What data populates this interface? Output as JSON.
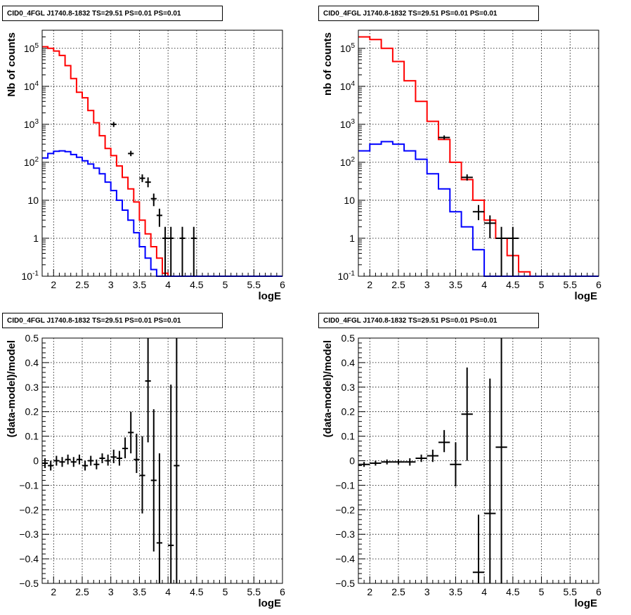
{
  "chart_data": [
    {
      "type": "histogram",
      "title": "CID0_4FGL J1740.8-1832 TS=29.51 PS=0.01 PS=0.01",
      "xlabel": "logE",
      "ylabel": "Nb of counts",
      "xlim": [
        1.8,
        6.0
      ],
      "ylim": [
        0.1,
        300000
      ],
      "yscale": "log",
      "grid": true,
      "xticks": [
        "2",
        "2.5",
        "3",
        "3.5",
        "4",
        "4.5",
        "5",
        "5.5",
        "6"
      ],
      "yticks": [
        "10^-1",
        "1",
        "10",
        "10^2",
        "10^3",
        "10^4",
        "10^5"
      ],
      "bin_edges": [
        1.8,
        1.9,
        2.0,
        2.1,
        2.2,
        2.3,
        2.4,
        2.5,
        2.6,
        2.7,
        2.8,
        2.9,
        3.0,
        3.1,
        3.2,
        3.3,
        3.4,
        3.5,
        3.6,
        3.7,
        3.8,
        3.9,
        4.0,
        4.1,
        4.2,
        4.3,
        4.4,
        4.5,
        4.6,
        4.7,
        4.8,
        4.9,
        5.0,
        5.1,
        5.2,
        5.3,
        5.4,
        5.5,
        5.6,
        5.7,
        5.8,
        5.9,
        6.0
      ],
      "series": [
        {
          "color": "#ff0000",
          "style": "step",
          "values": [
            110000,
            100000,
            85000,
            65000,
            35000,
            16000,
            7000,
            5000,
            2300,
            1100,
            500,
            230,
            150,
            80,
            40,
            20,
            9,
            3,
            1.3,
            0.6,
            0.3,
            0.12,
            0.1,
            0.1,
            0.1,
            0.1,
            0.1,
            0.1,
            0.1,
            0.1,
            0.1,
            0.1,
            0.1,
            0.1,
            0.1,
            0.1,
            0.1,
            0.1,
            0.1,
            0.1,
            0.1,
            0.1
          ]
        },
        {
          "color": "#0000ff",
          "style": "step",
          "values": [
            130,
            170,
            195,
            200,
            190,
            160,
            135,
            110,
            90,
            70,
            50,
            30,
            18,
            10,
            5.5,
            3,
            1.4,
            0.6,
            0.3,
            0.15,
            0.1,
            0.1,
            0.1,
            0.1,
            0.1,
            0.1,
            0.1,
            0.1,
            0.1,
            0.1,
            0.1,
            0.1,
            0.1,
            0.1,
            0.1,
            0.1,
            0.1,
            0.1,
            0.1,
            0.1,
            0.1,
            0.1
          ]
        },
        {
          "color": "#000000",
          "style": "errorbar",
          "points": [
            {
              "x": 3.05,
              "xerr": 0.05,
              "y": 1000,
              "ylo": 850,
              "yhi": 1150
            },
            {
              "x": 3.35,
              "xerr": 0.05,
              "y": 170,
              "ylo": 145,
              "yhi": 200
            },
            {
              "x": 3.55,
              "xerr": 0.05,
              "y": 38,
              "ylo": 30,
              "yhi": 48
            },
            {
              "x": 3.65,
              "xerr": 0.05,
              "y": 30,
              "ylo": 22,
              "yhi": 40
            },
            {
              "x": 3.75,
              "xerr": 0.05,
              "y": 11,
              "ylo": 7,
              "yhi": 15
            },
            {
              "x": 3.85,
              "xerr": 0.05,
              "y": 4,
              "ylo": 2,
              "yhi": 6
            },
            {
              "x": 3.95,
              "xerr": 0.05,
              "y": 1,
              "ylo": 0.1,
              "yhi": 2
            },
            {
              "x": 4.05,
              "xerr": 0.05,
              "y": 1,
              "ylo": 0.1,
              "yhi": 2
            },
            {
              "x": 4.25,
              "xerr": 0.05,
              "y": 1,
              "ylo": 0.1,
              "yhi": 2
            },
            {
              "x": 4.45,
              "xerr": 0.05,
              "y": 1,
              "ylo": 0.1,
              "yhi": 2
            }
          ]
        }
      ]
    },
    {
      "type": "histogram",
      "title": "CID0_4FGL J1740.8-1832 TS=29.51 PS=0.01 PS=0.01",
      "xlabel": "logE",
      "ylabel": "nb of counts",
      "xlim": [
        1.8,
        6.0
      ],
      "ylim": [
        0.1,
        300000
      ],
      "yscale": "log",
      "grid": true,
      "xticks": [
        "2",
        "2.5",
        "3",
        "3.5",
        "4",
        "4.5",
        "5",
        "5.5",
        "6"
      ],
      "yticks": [
        "10^-1",
        "1",
        "10",
        "10^2",
        "10^3",
        "10^4",
        "10^5"
      ],
      "bin_edges": [
        1.8,
        2.0,
        2.2,
        2.4,
        2.6,
        2.8,
        3.0,
        3.2,
        3.4,
        3.6,
        3.8,
        4.0,
        4.2,
        4.4,
        4.6,
        4.8,
        5.0,
        5.2,
        5.4,
        5.6,
        5.8,
        6.0
      ],
      "series": [
        {
          "color": "#ff0000",
          "style": "step",
          "values": [
            200000,
            170000,
            100000,
            45000,
            14000,
            4000,
            1200,
            400,
            100,
            35,
            10,
            3,
            1,
            0.35,
            0.13,
            0.1,
            0.1,
            0.1,
            0.1,
            0.1,
            0.1
          ]
        },
        {
          "color": "#0000ff",
          "style": "step",
          "values": [
            200,
            300,
            350,
            300,
            200,
            120,
            50,
            20,
            5,
            2,
            0.5,
            0.1,
            0.1,
            0.1,
            0.1,
            0.1,
            0.1,
            0.1,
            0.1,
            0.1,
            0.1
          ]
        },
        {
          "color": "#000000",
          "style": "errorbar",
          "points": [
            {
              "x": 3.3,
              "xerr": 0.1,
              "y": 450,
              "ylo": 400,
              "yhi": 510
            },
            {
              "x": 3.7,
              "xerr": 0.1,
              "y": 40,
              "ylo": 33,
              "yhi": 48
            },
            {
              "x": 3.9,
              "xerr": 0.1,
              "y": 5,
              "ylo": 3,
              "yhi": 7.5
            },
            {
              "x": 4.1,
              "xerr": 0.1,
              "y": 2.5,
              "ylo": 1,
              "yhi": 4
            },
            {
              "x": 4.3,
              "xerr": 0.1,
              "y": 1,
              "ylo": 0.1,
              "yhi": 2
            },
            {
              "x": 4.5,
              "xerr": 0.1,
              "y": 1,
              "ylo": 0.1,
              "yhi": 2
            }
          ]
        }
      ]
    },
    {
      "type": "scatter",
      "title": "CID0_4FGL J1740.8-1832 TS=29.51 PS=0.01 PS=0.01",
      "xlabel": "logE",
      "ylabel": "(data-model)/model",
      "xlim": [
        1.8,
        6.0
      ],
      "ylim": [
        -0.5,
        0.5
      ],
      "grid": true,
      "xticks": [
        "2",
        "2.5",
        "3",
        "3.5",
        "4",
        "4.5",
        "5",
        "5.5",
        "6"
      ],
      "yticks": [
        "−0.5",
        "−0.4",
        "−0.3",
        "−0.2",
        "−0.1",
        "0",
        "0.1",
        "0.2",
        "0.3",
        "0.4",
        "0.5"
      ],
      "series": [
        {
          "color": "#000000",
          "style": "errorbar",
          "points": [
            {
              "x": 1.85,
              "xerr": 0.05,
              "y": -0.01,
              "ylo": -0.03,
              "yhi": 0.01
            },
            {
              "x": 1.95,
              "xerr": 0.05,
              "y": -0.02,
              "ylo": -0.04,
              "yhi": 0.0
            },
            {
              "x": 2.05,
              "xerr": 0.05,
              "y": 0.0,
              "ylo": -0.02,
              "yhi": 0.02
            },
            {
              "x": 2.15,
              "xerr": 0.05,
              "y": -0.005,
              "ylo": -0.025,
              "yhi": 0.015
            },
            {
              "x": 2.25,
              "xerr": 0.05,
              "y": 0.005,
              "ylo": -0.015,
              "yhi": 0.025
            },
            {
              "x": 2.35,
              "xerr": 0.05,
              "y": -0.005,
              "ylo": -0.025,
              "yhi": 0.015
            },
            {
              "x": 2.45,
              "xerr": 0.05,
              "y": 0.005,
              "ylo": -0.015,
              "yhi": 0.025
            },
            {
              "x": 2.55,
              "xerr": 0.05,
              "y": -0.02,
              "ylo": -0.04,
              "yhi": 0.0
            },
            {
              "x": 2.65,
              "xerr": 0.05,
              "y": 0.0,
              "ylo": -0.02,
              "yhi": 0.02
            },
            {
              "x": 2.75,
              "xerr": 0.05,
              "y": -0.015,
              "ylo": -0.035,
              "yhi": 0.005
            },
            {
              "x": 2.85,
              "xerr": 0.05,
              "y": 0.01,
              "ylo": -0.01,
              "yhi": 0.03
            },
            {
              "x": 2.95,
              "xerr": 0.05,
              "y": 0.0,
              "ylo": -0.02,
              "yhi": 0.025
            },
            {
              "x": 3.05,
              "xerr": 0.05,
              "y": 0.015,
              "ylo": -0.01,
              "yhi": 0.045
            },
            {
              "x": 3.15,
              "xerr": 0.05,
              "y": 0.01,
              "ylo": -0.02,
              "yhi": 0.04
            },
            {
              "x": 3.25,
              "xerr": 0.05,
              "y": 0.05,
              "ylo": 0.01,
              "yhi": 0.095
            },
            {
              "x": 3.35,
              "xerr": 0.05,
              "y": 0.115,
              "ylo": 0.03,
              "yhi": 0.2
            },
            {
              "x": 3.45,
              "xerr": 0.05,
              "y": 0.005,
              "ylo": -0.05,
              "yhi": 0.11
            },
            {
              "x": 3.55,
              "xerr": 0.05,
              "y": -0.06,
              "ylo": -0.215,
              "yhi": 0.1
            },
            {
              "x": 3.65,
              "xerr": 0.05,
              "y": 0.325,
              "ylo": 0.075,
              "yhi": 0.5
            },
            {
              "x": 3.75,
              "xerr": 0.05,
              "y": -0.08,
              "ylo": -0.37,
              "yhi": 0.21
            },
            {
              "x": 3.85,
              "xerr": 0.05,
              "y": -0.335,
              "ylo": -0.5,
              "yhi": 0.03
            },
            {
              "x": 4.05,
              "xerr": 0.05,
              "y": -0.345,
              "ylo": -0.5,
              "yhi": 0.31
            },
            {
              "x": 4.15,
              "xerr": 0.05,
              "y": -0.02,
              "ylo": -0.5,
              "yhi": 0.5
            }
          ]
        }
      ]
    },
    {
      "type": "scatter",
      "title": "CID0_4FGL J1740.8-1832 TS=29.51 PS=0.01 PS=0.01",
      "xlabel": "logE",
      "ylabel": "(data-model)/model",
      "xlim": [
        1.8,
        6.0
      ],
      "ylim": [
        -0.5,
        0.5
      ],
      "grid": true,
      "xticks": [
        "2",
        "2.5",
        "3",
        "3.5",
        "4",
        "4.5",
        "5",
        "5.5",
        "6"
      ],
      "yticks": [
        "−0.5",
        "−0.4",
        "−0.3",
        "−0.2",
        "−0.1",
        "0",
        "0.1",
        "0.2",
        "0.3",
        "0.4",
        "0.5"
      ],
      "series": [
        {
          "color": "#000000",
          "style": "errorbar",
          "points": [
            {
              "x": 1.9,
              "xerr": 0.1,
              "y": -0.015,
              "ylo": -0.025,
              "yhi": -0.005
            },
            {
              "x": 2.1,
              "xerr": 0.1,
              "y": -0.01,
              "ylo": -0.02,
              "yhi": 0.0
            },
            {
              "x": 2.3,
              "xerr": 0.1,
              "y": -0.005,
              "ylo": -0.015,
              "yhi": 0.005
            },
            {
              "x": 2.5,
              "xerr": 0.1,
              "y": -0.005,
              "ylo": -0.015,
              "yhi": 0.005
            },
            {
              "x": 2.7,
              "xerr": 0.1,
              "y": -0.005,
              "ylo": -0.02,
              "yhi": 0.01
            },
            {
              "x": 2.9,
              "xerr": 0.1,
              "y": 0.01,
              "ylo": -0.005,
              "yhi": 0.025
            },
            {
              "x": 3.1,
              "xerr": 0.1,
              "y": 0.02,
              "ylo": -0.005,
              "yhi": 0.045
            },
            {
              "x": 3.3,
              "xerr": 0.1,
              "y": 0.075,
              "ylo": 0.035,
              "yhi": 0.125
            },
            {
              "x": 3.5,
              "xerr": 0.1,
              "y": -0.015,
              "ylo": -0.105,
              "yhi": 0.075
            },
            {
              "x": 3.7,
              "xerr": 0.1,
              "y": 0.19,
              "ylo": 0.0,
              "yhi": 0.38
            },
            {
              "x": 3.9,
              "xerr": 0.1,
              "y": -0.455,
              "ylo": -0.5,
              "yhi": -0.22
            },
            {
              "x": 4.1,
              "xerr": 0.1,
              "y": -0.215,
              "ylo": -0.5,
              "yhi": 0.335
            },
            {
              "x": 4.3,
              "xerr": 0.1,
              "y": 0.055,
              "ylo": -0.5,
              "yhi": 0.5
            }
          ]
        }
      ]
    }
  ]
}
